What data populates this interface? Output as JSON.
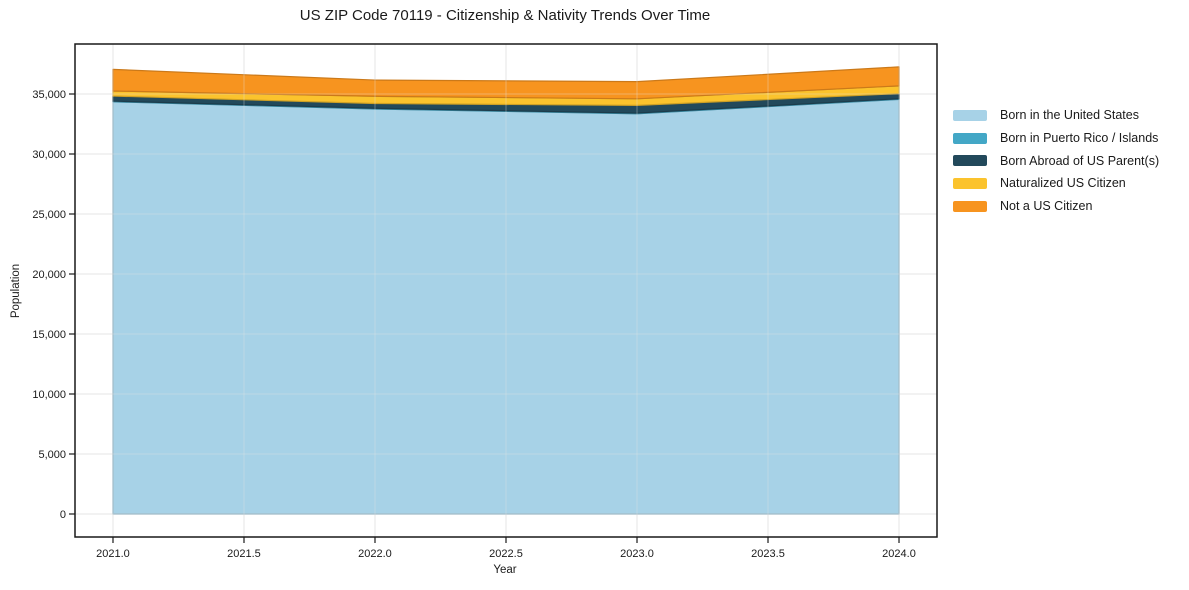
{
  "chart_data": {
    "type": "area",
    "stacked": true,
    "title": "US ZIP Code 70119 - Citizenship & Nativity Trends Over Time",
    "xlabel": "Year",
    "ylabel": "Population",
    "x": [
      2021,
      2022,
      2023,
      2024
    ],
    "series": [
      {
        "name": "Born in the United States",
        "color": "#A7D2E7",
        "values": [
          34350,
          33750,
          33350,
          34550
        ]
      },
      {
        "name": "Born in Puerto Rico / Islands",
        "color": "#43A7C6",
        "values": [
          60,
          60,
          60,
          60
        ]
      },
      {
        "name": "Born Abroad of US Parent(s)",
        "color": "#22495B",
        "values": [
          420,
          400,
          640,
          420
        ]
      },
      {
        "name": "Naturalized US Citizen",
        "color": "#FBC32D",
        "values": [
          420,
          600,
          550,
          650
        ]
      },
      {
        "name": "Not a US Citizen",
        "color": "#F7941F",
        "values": [
          1800,
          1350,
          1430,
          1580
        ]
      }
    ],
    "xlim": [
      2020.855,
      2024.145
    ],
    "ylim": [
      -1917,
      39167
    ],
    "xticks": {
      "values": [
        2021.0,
        2021.5,
        2022.0,
        2022.5,
        2023.0,
        2023.5,
        2024.0
      ],
      "labels": [
        "2021.0",
        "2021.5",
        "2022.0",
        "2022.5",
        "2023.0",
        "2023.5",
        "2024.0"
      ]
    },
    "yticks": {
      "values": [
        0,
        5000,
        10000,
        15000,
        20000,
        25000,
        30000,
        35000
      ],
      "labels": [
        "0",
        "5,000",
        "10,000",
        "15,000",
        "20,000",
        "25,000",
        "30,000",
        "35,000"
      ]
    },
    "grid": true,
    "legend_position": "right-outside",
    "colors": {
      "grid": "#e4e4e4",
      "spine": "#191919",
      "text": "#1a1a1a",
      "background": "#ffffff"
    }
  }
}
